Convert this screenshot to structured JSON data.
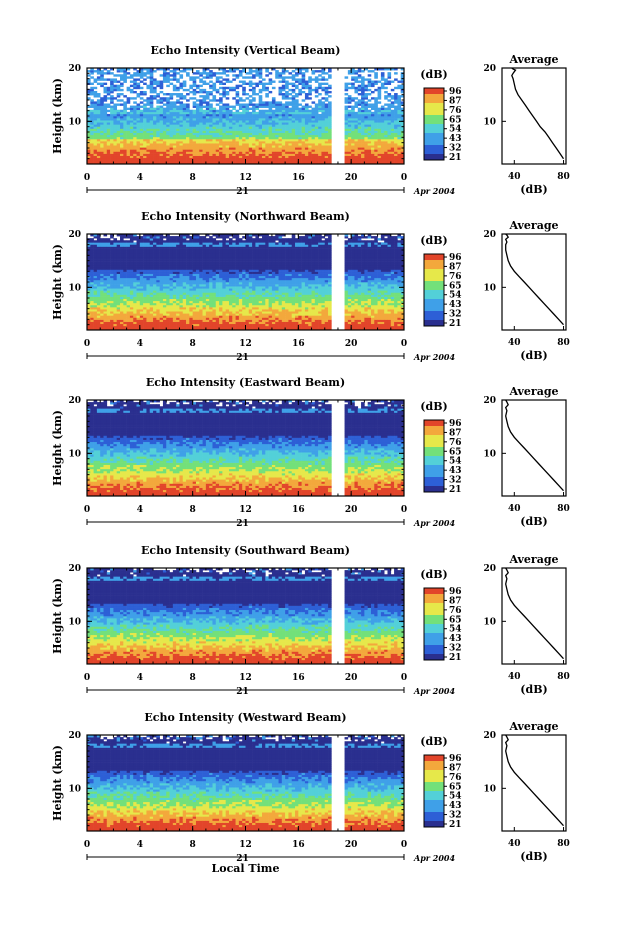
{
  "chart_data": [
    {
      "type": "heatmap",
      "title": "Echo Intensity (Vertical Beam)",
      "ylabel": "Height (km)",
      "xlabel": "",
      "x_ticks": [
        "0",
        "4",
        "8",
        "12",
        "16",
        "20",
        "0"
      ],
      "y_ticks": [
        "10",
        "20"
      ],
      "xlim": [
        0,
        24
      ],
      "ylim": [
        2,
        20
      ],
      "day_label": "21",
      "month_label": "Apr 2004",
      "colorbar": {
        "label": "(dB)",
        "ticks": [
          "96",
          "87",
          "76",
          "65",
          "54",
          "43",
          "32",
          "21"
        ]
      },
      "data_gap_hours": [
        18.6,
        19.2
      ],
      "profile": {
        "title": "Average",
        "xlabel": "(dB)",
        "x_ticks": [
          "40",
          "80"
        ],
        "y_ticks": [
          "10",
          "20"
        ],
        "x": [
          80,
          77,
          74,
          71,
          68,
          65,
          61,
          58,
          55,
          52,
          49,
          46,
          43,
          41,
          40,
          39,
          38,
          39,
          40,
          41,
          39,
          38
        ],
        "y": [
          3,
          4,
          5,
          6,
          7,
          8,
          9,
          10,
          11,
          12,
          13,
          14,
          15,
          16,
          17,
          18,
          18.6,
          19,
          19.3,
          19.6,
          19.8,
          20
        ]
      }
    },
    {
      "type": "heatmap",
      "title": "Echo Intensity (Northward Beam)",
      "ylabel": "Height (km)",
      "xlabel": "",
      "x_ticks": [
        "0",
        "4",
        "8",
        "12",
        "16",
        "20",
        "0"
      ],
      "y_ticks": [
        "10",
        "20"
      ],
      "xlim": [
        0,
        24
      ],
      "ylim": [
        2,
        20
      ],
      "day_label": "21",
      "month_label": "Apr 2004",
      "colorbar": {
        "label": "(dB)",
        "ticks": [
          "96",
          "87",
          "76",
          "65",
          "54",
          "43",
          "32",
          "21"
        ]
      },
      "data_gap_hours": [
        18.6,
        19.2
      ],
      "profile": {
        "title": "Average",
        "xlabel": "(dB)",
        "x_ticks": [
          "40",
          "80"
        ],
        "y_ticks": [
          "10",
          "20"
        ],
        "x": [
          80,
          76,
          72,
          68,
          64,
          60,
          56,
          52,
          48,
          44,
          40,
          37,
          35,
          34,
          33,
          33,
          34,
          33,
          35,
          34,
          33
        ],
        "y": [
          3,
          4,
          5,
          6,
          7,
          8,
          9,
          10,
          11,
          12,
          13,
          14,
          15,
          16,
          17,
          18,
          18.5,
          19,
          19.4,
          19.8,
          20
        ]
      }
    },
    {
      "type": "heatmap",
      "title": "Echo Intensity (Eastward Beam)",
      "ylabel": "Height (km)",
      "xlabel": "",
      "x_ticks": [
        "0",
        "4",
        "8",
        "12",
        "16",
        "20",
        "0"
      ],
      "y_ticks": [
        "10",
        "20"
      ],
      "xlim": [
        0,
        24
      ],
      "ylim": [
        2,
        20
      ],
      "day_label": "21",
      "month_label": "Apr 2004",
      "colorbar": {
        "label": "(dB)",
        "ticks": [
          "96",
          "87",
          "76",
          "65",
          "54",
          "43",
          "32",
          "21"
        ]
      },
      "data_gap_hours": [
        18.6,
        19.2
      ],
      "profile": {
        "title": "Average",
        "xlabel": "(dB)",
        "x_ticks": [
          "40",
          "80"
        ],
        "y_ticks": [
          "10",
          "20"
        ],
        "x": [
          80,
          76,
          72,
          68,
          64,
          60,
          56,
          52,
          48,
          44,
          40,
          37,
          35,
          34,
          33,
          34,
          33,
          35,
          34,
          33
        ],
        "y": [
          3,
          4,
          5,
          6,
          7,
          8,
          9,
          10,
          11,
          12,
          13,
          14,
          15,
          16,
          17,
          18,
          18.6,
          19.1,
          19.6,
          20
        ]
      }
    },
    {
      "type": "heatmap",
      "title": "Echo Intensity (Southward Beam)",
      "ylabel": "Height (km)",
      "xlabel": "",
      "x_ticks": [
        "0",
        "4",
        "8",
        "12",
        "16",
        "20",
        "0"
      ],
      "y_ticks": [
        "10",
        "20"
      ],
      "xlim": [
        0,
        24
      ],
      "ylim": [
        2,
        20
      ],
      "day_label": "21",
      "month_label": "Apr 2004",
      "colorbar": {
        "label": "(dB)",
        "ticks": [
          "96",
          "87",
          "76",
          "65",
          "54",
          "43",
          "32",
          "21"
        ]
      },
      "data_gap_hours": [
        18.6,
        19.2
      ],
      "profile": {
        "title": "Average",
        "xlabel": "(dB)",
        "x_ticks": [
          "40",
          "80"
        ],
        "y_ticks": [
          "10",
          "20"
        ],
        "x": [
          80,
          76,
          72,
          68,
          64,
          60,
          56,
          52,
          48,
          44,
          40,
          37,
          35,
          34,
          33,
          34,
          33,
          35,
          34,
          33
        ],
        "y": [
          3,
          4,
          5,
          6,
          7,
          8,
          9,
          10,
          11,
          12,
          13,
          14,
          15,
          16,
          17,
          18,
          18.6,
          19.1,
          19.6,
          20
        ]
      }
    },
    {
      "type": "heatmap",
      "title": "Echo Intensity (Westward Beam)",
      "ylabel": "Height (km)",
      "xlabel": "Local Time",
      "x_ticks": [
        "0",
        "4",
        "8",
        "12",
        "16",
        "20",
        "0"
      ],
      "y_ticks": [
        "10",
        "20"
      ],
      "xlim": [
        0,
        24
      ],
      "ylim": [
        2,
        20
      ],
      "day_label": "21",
      "month_label": "Apr 2004",
      "colorbar": {
        "label": "(dB)",
        "ticks": [
          "96",
          "87",
          "76",
          "65",
          "54",
          "43",
          "32",
          "21"
        ]
      },
      "data_gap_hours": [
        18.6,
        19.2
      ],
      "profile": {
        "title": "Average",
        "xlabel": "(dB)",
        "x_ticks": [
          "40",
          "80"
        ],
        "y_ticks": [
          "10",
          "20"
        ],
        "x": [
          80,
          76,
          72,
          68,
          64,
          60,
          56,
          52,
          48,
          44,
          40,
          37,
          35,
          34,
          33,
          34,
          33,
          35,
          34,
          33
        ],
        "y": [
          3,
          4,
          5,
          6,
          7,
          8,
          9,
          10,
          11,
          12,
          13,
          14,
          15,
          16,
          17,
          18,
          18.6,
          19.1,
          19.6,
          20
        ]
      }
    }
  ],
  "colors": {
    "colormap": [
      "#2a2f8f",
      "#2d5fd6",
      "#3fa0e8",
      "#53d0d8",
      "#73e07a",
      "#e6e84a",
      "#f3a83c",
      "#e2452a"
    ],
    "axis": "#000000",
    "profile_line": "#000000"
  }
}
